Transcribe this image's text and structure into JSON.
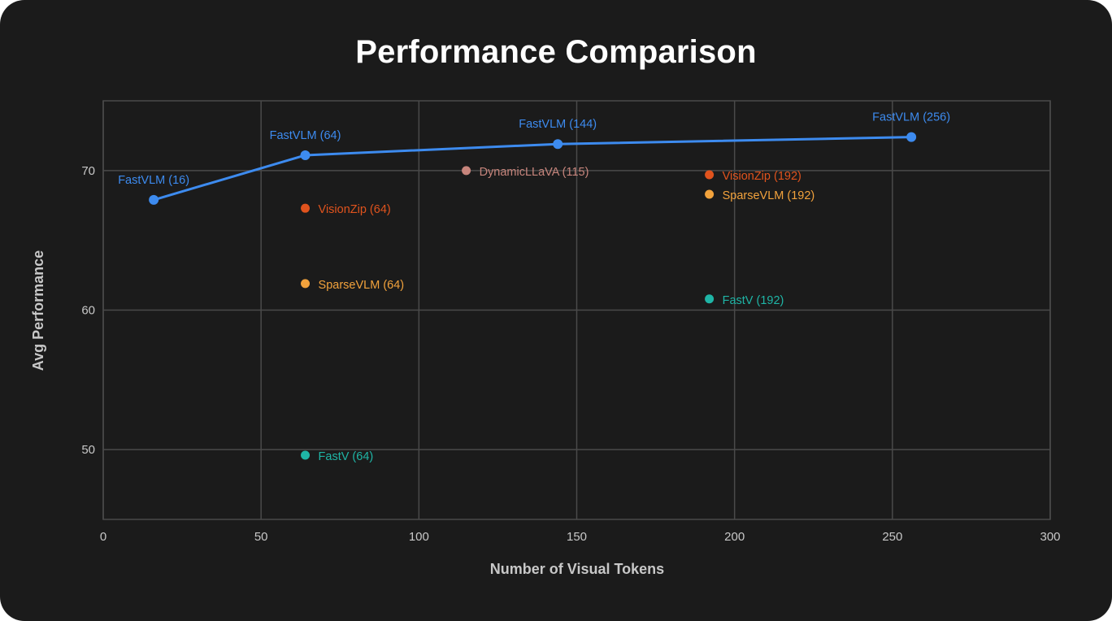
{
  "colors": {
    "background": "#1b1b1b",
    "grid": "#4a4a4a",
    "FastVLM": "#3d8bef",
    "VisionZip": "#e0531d",
    "SparseVLM": "#f2a23c",
    "FastV": "#1fb5a6",
    "DynamicLLaVA": "#c7857c"
  },
  "chart_data": {
    "type": "scatter",
    "title": "Performance Comparison",
    "xlabel": "Number of Visual Tokens",
    "ylabel": "Avg Performance",
    "xlim": [
      0,
      300
    ],
    "ylim": [
      45,
      75
    ],
    "xticks": [
      0,
      50,
      100,
      150,
      200,
      250,
      300
    ],
    "yticks": [
      50,
      60,
      70
    ],
    "grid": true,
    "series": [
      {
        "method": "FastVLM",
        "color_key": "FastVLM",
        "connected": true,
        "points": [
          {
            "x": 16,
            "y": 67.9,
            "label": "FastVLM (16)"
          },
          {
            "x": 64,
            "y": 71.1,
            "label": "FastVLM (64)"
          },
          {
            "x": 144,
            "y": 71.9,
            "label": "FastVLM (144)"
          },
          {
            "x": 256,
            "y": 72.4,
            "label": "FastVLM (256)"
          }
        ]
      },
      {
        "method": "VisionZip",
        "color_key": "VisionZip",
        "connected": false,
        "points": [
          {
            "x": 64,
            "y": 67.3,
            "label": "VisionZip (64)"
          },
          {
            "x": 192,
            "y": 69.7,
            "label": "VisionZip (192)"
          }
        ]
      },
      {
        "method": "SparseVLM",
        "color_key": "SparseVLM",
        "connected": false,
        "points": [
          {
            "x": 64,
            "y": 61.9,
            "label": "SparseVLM (64)"
          },
          {
            "x": 192,
            "y": 68.3,
            "label": "SparseVLM (192)"
          }
        ]
      },
      {
        "method": "FastV",
        "color_key": "FastV",
        "connected": false,
        "points": [
          {
            "x": 64,
            "y": 49.6,
            "label": "FastV (64)"
          },
          {
            "x": 192,
            "y": 60.8,
            "label": "FastV (192)"
          }
        ]
      },
      {
        "method": "DynamicLLaVA",
        "color_key": "DynamicLLaVA",
        "connected": false,
        "points": [
          {
            "x": 115,
            "y": 70.0,
            "label": "DynamicLLaVA (115)"
          }
        ]
      }
    ]
  }
}
